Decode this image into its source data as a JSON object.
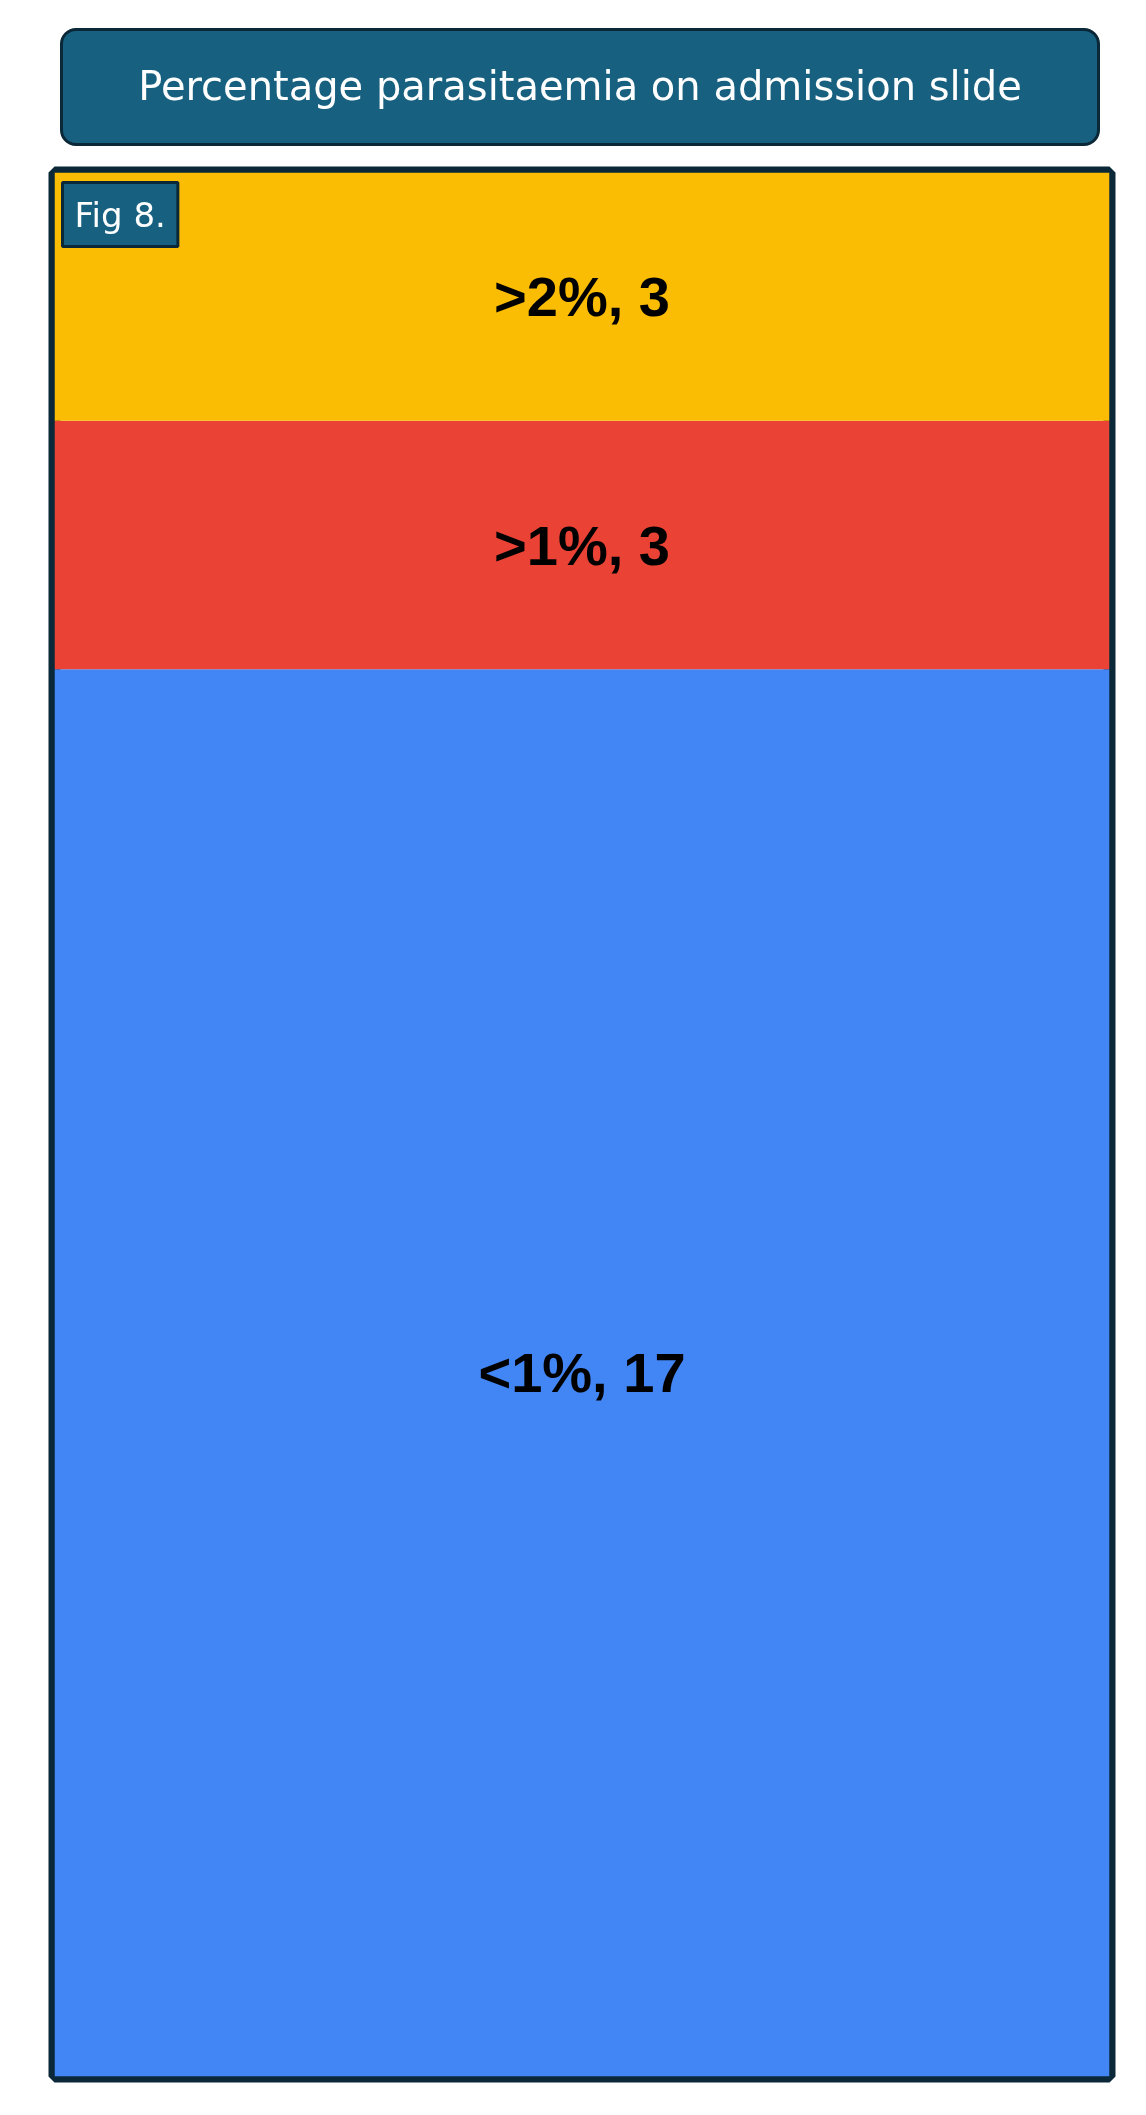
{
  "chart_data": {
    "type": "bar",
    "stacked": true,
    "title": "Percentage parasitaemia on admission slide",
    "annotations": [
      "Fig 8."
    ],
    "categories": [
      null
    ],
    "series": [
      {
        "color": "#4285f4",
        "values": [
          17
        ],
        "value_labels": [
          "<1%, 17"
        ]
      },
      {
        "color": "#ea4335",
        "values": [
          3
        ],
        "value_labels": [
          ">1%, 3"
        ]
      },
      {
        "color": "#fbbc04",
        "values": [
          3
        ],
        "value_labels": [
          ">2%, 3"
        ]
      }
    ]
  }
}
